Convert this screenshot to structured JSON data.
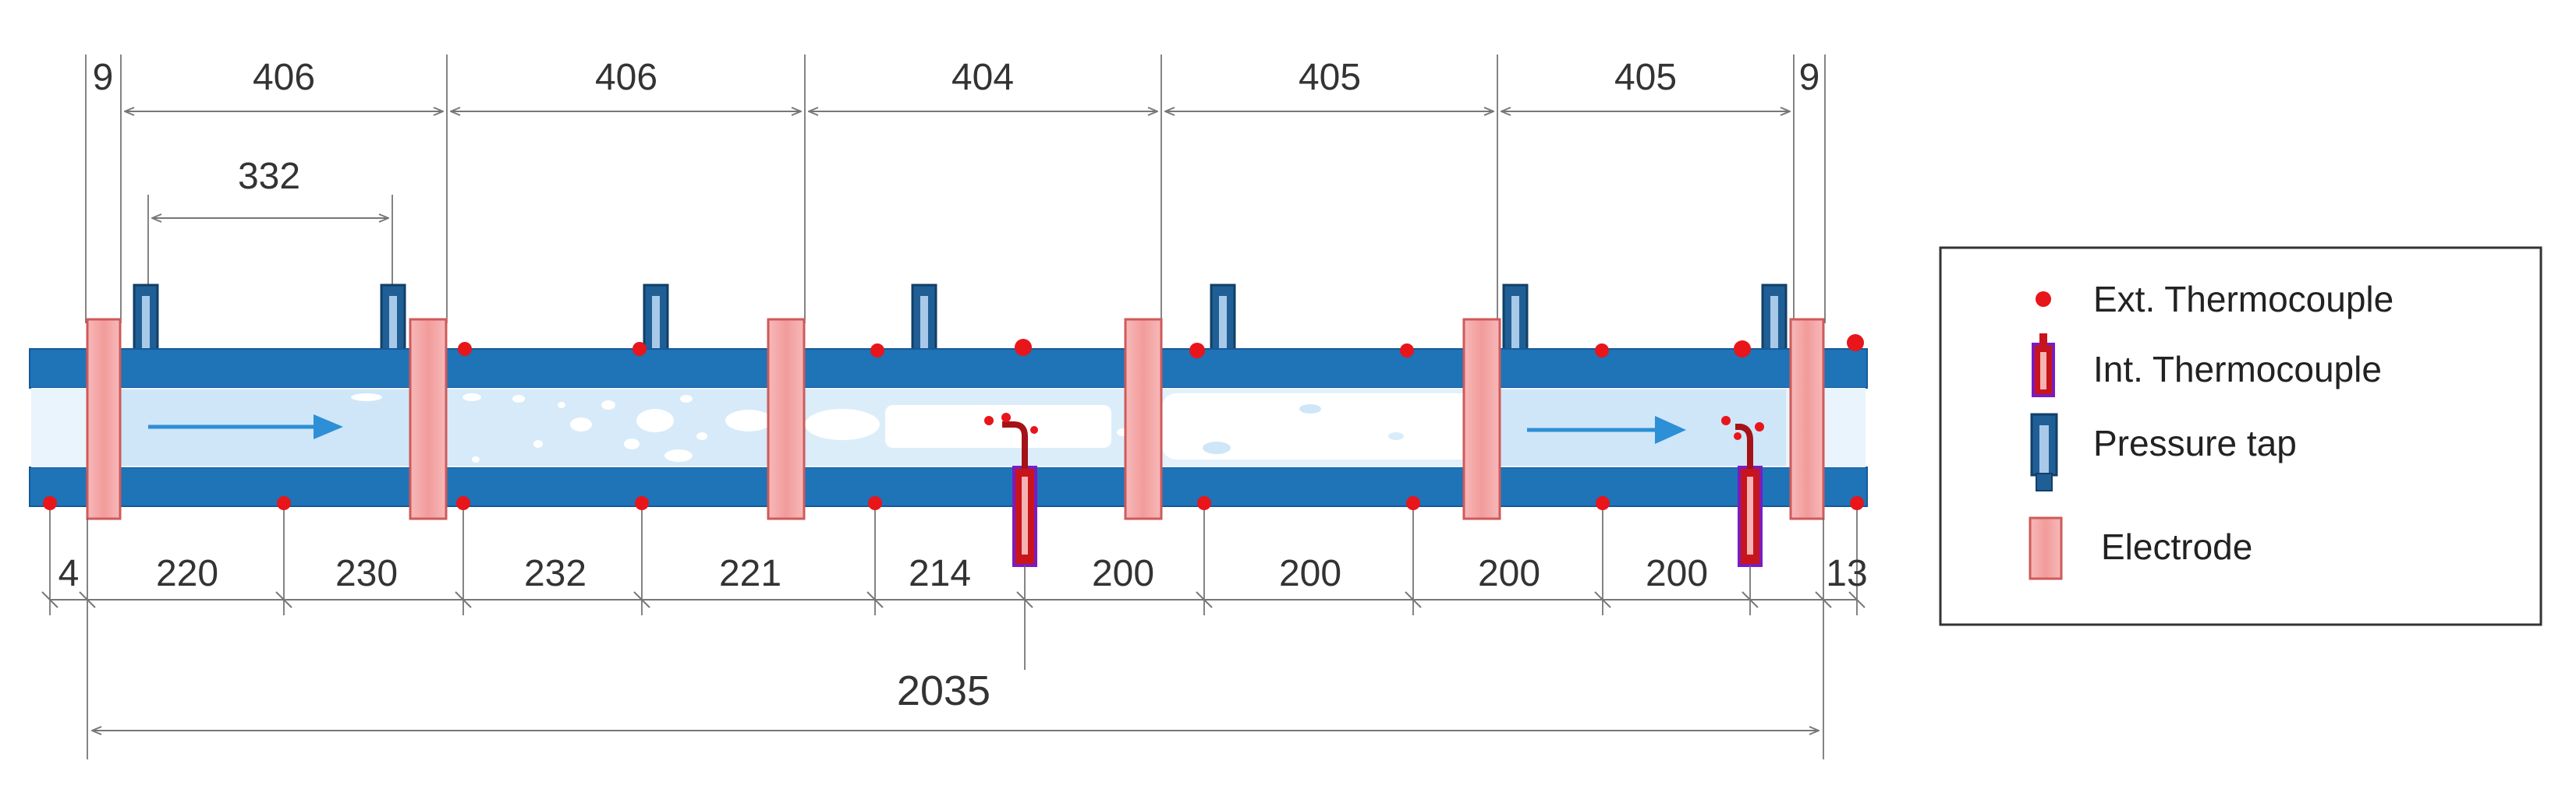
{
  "colors": {
    "pipe": "#1f73b7",
    "pipe_edge": "#15599a",
    "flow_light": "#cfe6f8",
    "bubble": "#ffffff",
    "electrode_fill": "#f4a3a3",
    "electrode_edge": "#cf5a5a",
    "ext_thermocouple": "#e8151b",
    "int_thermocouple": "#c8141c",
    "int_thermocouple_edge": "#7a1cc0",
    "pressure_tap": "#1f5f96",
    "flow_arrow": "#2d8fd6",
    "dimension_line": "#777777",
    "legend_border": "#333333"
  },
  "dimensions": {
    "top_segments": [
      "9",
      "406",
      "406",
      "404",
      "405",
      "405",
      "9"
    ],
    "tap_spacing": "332",
    "bottom_segments": [
      "4",
      "220",
      "230",
      "232",
      "221",
      "214",
      "200",
      "200",
      "200",
      "200",
      "13"
    ],
    "total_length": "2035"
  },
  "legend": {
    "items": [
      {
        "label": "Ext. Thermocouple",
        "icon": "ext-thermocouple-dot"
      },
      {
        "label": "Int. Thermocouple",
        "icon": "int-thermocouple-probe"
      },
      {
        "label": "Pressure tap",
        "icon": "pressure-tap"
      },
      {
        "label": "Electrode",
        "icon": "electrode-block"
      }
    ]
  },
  "flow_arrows": [
    "flow-direction-arrow",
    "flow-direction-arrow"
  ]
}
